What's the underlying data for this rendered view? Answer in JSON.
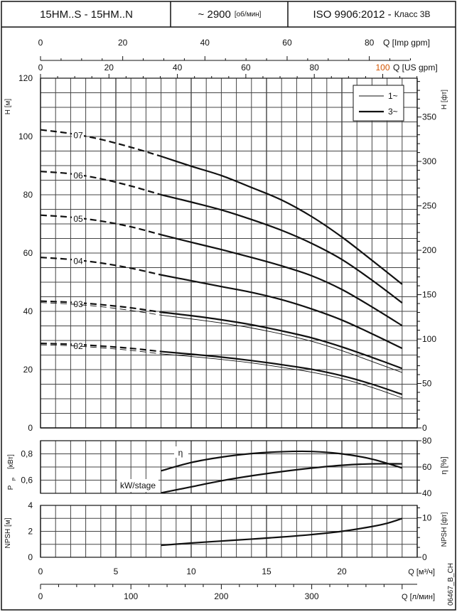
{
  "header": {
    "model": "15HM..S - 15HM..N",
    "speed": "~ 2900",
    "speed_unit": "[об/мин]",
    "standard": "ISO 9906:2012",
    "standard_sep": " - ",
    "standard_class": "Класс 3B"
  },
  "axes": {
    "q_imp_label": "Q [Imp gpm]",
    "q_imp_ticks": [
      "0",
      "20",
      "40",
      "60",
      "80"
    ],
    "q_us_label": "Q [US gpm]",
    "q_us_ticks": [
      "0",
      "20",
      "40",
      "60",
      "80",
      "100"
    ],
    "h_m_label": "H [м]",
    "h_m_ticks": [
      "0",
      "20",
      "40",
      "60",
      "80",
      "100",
      "120"
    ],
    "h_ft_label": "H [фт]",
    "h_ft_ticks": [
      "0",
      "50",
      "100",
      "150",
      "200",
      "250",
      "300",
      "350"
    ],
    "p_label": "P",
    "p_sub": "P",
    "p_unit": "[кВт]",
    "p_ticks": [
      "0,6",
      "0,8"
    ],
    "eta_label": "η [%]",
    "eta_ticks": [
      "40",
      "60",
      "80"
    ],
    "npsh_m_label": "NPSH [м]",
    "npsh_m_ticks": [
      "0",
      "2",
      "4"
    ],
    "npsh_ft_label": "NPSH [фт]",
    "npsh_ft_ticks": [
      "0",
      "10"
    ],
    "q_m3h_label": "Q [м³/ч]",
    "q_m3h_ticks": [
      "0",
      "5",
      "10",
      "15",
      "20"
    ],
    "q_lmin_label": "Q [л/мин]",
    "q_lmin_ticks": [
      "0",
      "100",
      "200",
      "300"
    ],
    "drawing_code": "06467_B_CH"
  },
  "legend": {
    "items": [
      {
        "label": "1~",
        "style": "thin"
      },
      {
        "label": "3~",
        "style": "thick"
      }
    ],
    "placement": "top-right"
  },
  "chart_data": [
    {
      "type": "line",
      "xlabel": "Q [м³/ч]",
      "ylabel": "H [м]",
      "xlim": [
        0,
        25
      ],
      "ylim": [
        0,
        120
      ],
      "grid": true,
      "x": [
        0,
        2,
        4,
        6,
        8,
        10,
        12,
        14,
        16,
        18,
        20,
        22,
        24
      ],
      "dashed_below_x": 8,
      "series": [
        {
          "name": "07",
          "phase": "3~",
          "values": [
            102.3,
            101,
            99,
            96.3,
            93.2,
            89.8,
            86.6,
            82.5,
            78.2,
            72.5,
            65.5,
            57.5,
            49.3
          ]
        },
        {
          "name": "06",
          "phase": "3~",
          "values": [
            88,
            87.2,
            85.5,
            83,
            80,
            77.5,
            74.8,
            71.5,
            67.8,
            63.3,
            57.8,
            50.7,
            42.9
          ]
        },
        {
          "name": "05",
          "phase": "3~",
          "values": [
            73,
            72.3,
            71,
            69,
            66.3,
            63.7,
            61.2,
            58.5,
            55.6,
            52.2,
            47.5,
            41.5,
            35.1
          ]
        },
        {
          "name": "04",
          "phase": "3~",
          "values": [
            58.5,
            57.8,
            56.6,
            54.8,
            52.5,
            50.5,
            48.5,
            46.5,
            44,
            40.8,
            37,
            32.3,
            27.3
          ]
        },
        {
          "name": "03",
          "phase": "3~",
          "values": [
            43.5,
            43.1,
            42.3,
            41.2,
            39.7,
            38.5,
            37.1,
            35.4,
            33.3,
            30.9,
            27.8,
            24.2,
            20.4
          ]
        },
        {
          "name": "03",
          "phase": "1~",
          "values": [
            43,
            42.5,
            41.6,
            40.3,
            38.7,
            37.4,
            36,
            34.3,
            32.2,
            29.7,
            26.5,
            22.8,
            19.0
          ]
        },
        {
          "name": "02",
          "phase": "3~",
          "values": [
            29,
            28.7,
            28.1,
            27.3,
            26.2,
            25.3,
            24.3,
            23.1,
            21.7,
            20.1,
            17.9,
            15,
            11.5
          ]
        },
        {
          "name": "02",
          "phase": "1~",
          "values": [
            28.5,
            28.2,
            27.5,
            26.6,
            25.4,
            24.5,
            23.5,
            22.3,
            20.8,
            19.1,
            16.9,
            13.9,
            10.3
          ]
        }
      ]
    },
    {
      "type": "line",
      "xlim": [
        0,
        25
      ],
      "ylim_left": [
        0.5,
        0.9
      ],
      "ylim_right": [
        40,
        80
      ],
      "grid": true,
      "x": [
        8,
        10,
        12,
        14,
        16,
        18,
        20,
        22,
        24
      ],
      "series": [
        {
          "name": "η",
          "axis": "right",
          "values": [
            57.1,
            63.4,
            67.5,
            70.2,
            71.6,
            71.8,
            70,
            66,
            59.3
          ]
        },
        {
          "name": "kW/stage",
          "axis": "left",
          "values": [
            0.503,
            0.549,
            0.595,
            0.633,
            0.665,
            0.692,
            0.713,
            0.724,
            0.724
          ]
        }
      ]
    },
    {
      "type": "line",
      "xlim": [
        0,
        25
      ],
      "ylim": [
        0,
        4
      ],
      "grid": true,
      "x": [
        8,
        10,
        12,
        14,
        16,
        18,
        20,
        22,
        23,
        24
      ],
      "series": [
        {
          "values": [
            0.92,
            1.1,
            1.25,
            1.4,
            1.56,
            1.75,
            2.0,
            2.37,
            2.62,
            2.99
          ]
        }
      ]
    }
  ]
}
